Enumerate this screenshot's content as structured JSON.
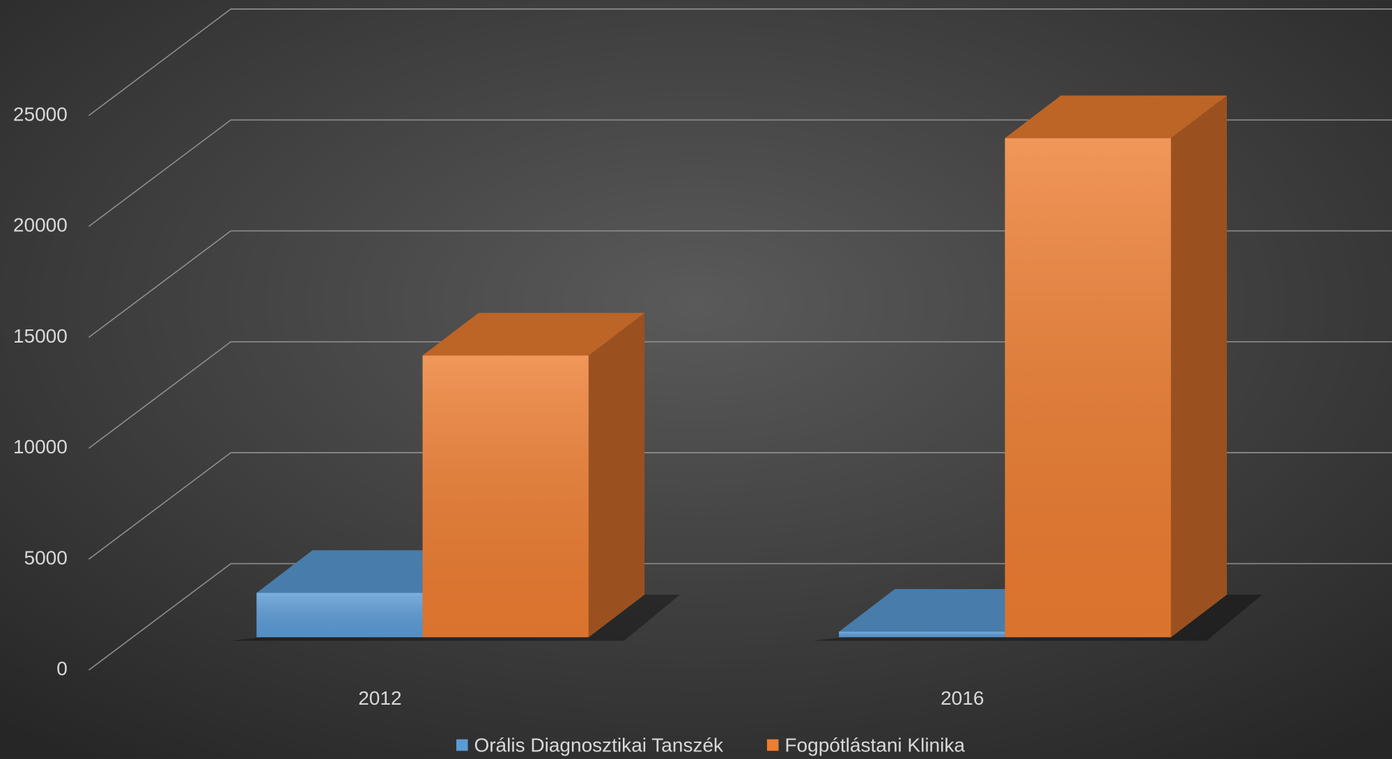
{
  "chart_data": {
    "type": "bar3d",
    "categories": [
      "2012",
      "2016"
    ],
    "series": [
      {
        "name": "Orális Diagnosztikai Tanszék",
        "color": "#5b9bd5",
        "values": [
          2000,
          250
        ]
      },
      {
        "name": "Fogpótlástani Klinika",
        "color": "#ed7d31",
        "values": [
          12700,
          22500
        ]
      }
    ],
    "ylim": [
      0,
      25000
    ],
    "yticks": [
      0,
      5000,
      10000,
      15000,
      20000,
      25000
    ],
    "grid": true,
    "legend": "bottom"
  }
}
